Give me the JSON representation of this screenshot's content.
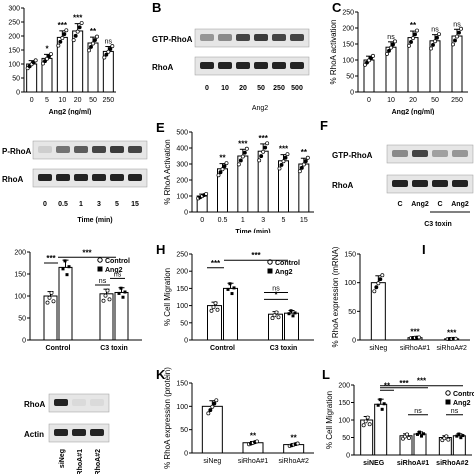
{
  "panels": {
    "A": {
      "label": "",
      "xlabel": "Ang2 (ng/ml)"
    },
    "B": {
      "label": "B",
      "row1": "GTP-RhoA",
      "row2": "RhoA",
      "lanes": [
        "0",
        "10",
        "20",
        "50",
        "250",
        "500"
      ],
      "xlabel": "Ang2"
    },
    "C": {
      "label": "C",
      "xlabel": "Ang2 (ng/ml)"
    },
    "D": {
      "label": "",
      "row1": "P-RhoA",
      "row2": "RhoA",
      "lanes": [
        "0",
        "0.5",
        "1",
        "3",
        "5",
        "15"
      ],
      "xlabel": "Time (min)"
    },
    "E": {
      "label": "E",
      "xlabel": "Time (min)"
    },
    "F": {
      "label": "F",
      "row1": "GTP-RhoA",
      "row2": "RhoA",
      "lanes": [
        "C",
        "Ang2",
        "C",
        "Ang2"
      ],
      "group": "C3 toxin"
    },
    "G": {
      "label": ""
    },
    "H": {
      "label": "H"
    },
    "I": {
      "label": "I"
    },
    "J": {
      "label": "",
      "row1": "RhoA",
      "row2": "Actin",
      "lanes": [
        "siNeg",
        "siRhoA#1",
        "siRhoA#2"
      ]
    },
    "K": {
      "label": "K"
    },
    "L": {
      "label": "L"
    }
  },
  "colors": {
    "bar": "#ffffff",
    "stroke": "#000000",
    "control": "#ffffff",
    "ang2": "#000000"
  },
  "chart_data": [
    {
      "id": "A",
      "type": "bar",
      "categories": [
        "0",
        "5",
        "10",
        "20",
        "50",
        "250"
      ],
      "values": [
        100,
        120,
        195,
        218,
        175,
        145
      ],
      "ylim": [
        0,
        300
      ],
      "yticks": [
        0,
        50,
        100,
        150,
        200,
        250,
        300
      ],
      "xlabel": "Ang2 (ng/ml)",
      "ylabel": "",
      "sig": [
        "",
        "*",
        "***",
        "***",
        "**",
        "ns"
      ]
    },
    {
      "id": "C",
      "type": "bar",
      "categories": [
        "0",
        "10",
        "20",
        "50",
        "250"
      ],
      "values": [
        100,
        140,
        170,
        160,
        175
      ],
      "ylim": [
        0,
        250
      ],
      "yticks": [
        0,
        50,
        100,
        150,
        200,
        250
      ],
      "xlabel": "Ang2 (ng/ml)",
      "ylabel": "% RhoA activation",
      "sig": [
        "",
        "ns",
        "**",
        "ns",
        "ns"
      ]
    },
    {
      "id": "E",
      "type": "bar",
      "categories": [
        "0",
        "0.5",
        "1",
        "3",
        "5",
        "15"
      ],
      "values": [
        100,
        270,
        350,
        380,
        320,
        300
      ],
      "ylim": [
        0,
        500
      ],
      "yticks": [
        0,
        100,
        200,
        300,
        400,
        500
      ],
      "xlabel": "Time (min)",
      "ylabel": "% RhoA Activation",
      "sig": [
        "",
        "**",
        "***",
        "***",
        "***",
        "**"
      ]
    },
    {
      "id": "G",
      "type": "bar",
      "categories": [
        "Control",
        "C3 toxin"
      ],
      "series": [
        {
          "name": "Control",
          "values": [
            100,
            105
          ]
        },
        {
          "name": "Ang2",
          "values": [
            165,
            108
          ]
        }
      ],
      "ylim": [
        0,
        200
      ],
      "yticks": [
        0,
        50,
        100,
        150,
        200
      ],
      "xlabel": "",
      "ylabel": "",
      "legend": "top-right",
      "sig_labels": [
        "***",
        "***",
        "ns",
        "ns"
      ]
    },
    {
      "id": "H",
      "type": "bar",
      "categories": [
        "Control",
        "C3 toxin"
      ],
      "series": [
        {
          "name": "Control",
          "values": [
            100,
            75
          ]
        },
        {
          "name": "Ang2",
          "values": [
            150,
            78
          ]
        }
      ],
      "ylim": [
        0,
        250
      ],
      "yticks": [
        0,
        50,
        100,
        150,
        200,
        250
      ],
      "xlabel": "",
      "ylabel": "% Cell Migration",
      "legend": "top-right",
      "sig_labels": [
        "***",
        "***",
        "*",
        "ns"
      ]
    },
    {
      "id": "I",
      "type": "bar",
      "categories": [
        "siNeg",
        "siRhoA#1",
        "siRhoA#2"
      ],
      "values": [
        100,
        4,
        2
      ],
      "ylim": [
        0,
        150
      ],
      "yticks": [
        0,
        50,
        100,
        150
      ],
      "xlabel": "",
      "ylabel": "% RhoA expression (mRNA)",
      "sig": [
        "",
        "***",
        "***"
      ]
    },
    {
      "id": "K",
      "type": "bar",
      "categories": [
        "siNeg",
        "siRhoA#1",
        "siRhoA#2"
      ],
      "values": [
        100,
        22,
        18
      ],
      "ylim": [
        0,
        150
      ],
      "yticks": [
        0,
        50,
        100,
        150
      ],
      "xlabel": "",
      "ylabel": "% RhoA expression (protein)",
      "sig": [
        "",
        "**",
        "**"
      ]
    },
    {
      "id": "L",
      "type": "bar",
      "categories": [
        "siNEG",
        "siRhoA#1",
        "siRhoA#2"
      ],
      "series": [
        {
          "name": "Control",
          "values": [
            100,
            55,
            50
          ]
        },
        {
          "name": "Ang2",
          "values": [
            145,
            60,
            55
          ]
        }
      ],
      "ylim": [
        0,
        200
      ],
      "yticks": [
        0,
        50,
        100,
        150,
        200
      ],
      "xlabel": "",
      "ylabel": "% Cell Migration",
      "legend": "top-right",
      "sig_labels": [
        "**",
        "***",
        "***",
        "ns",
        "ns"
      ]
    }
  ]
}
